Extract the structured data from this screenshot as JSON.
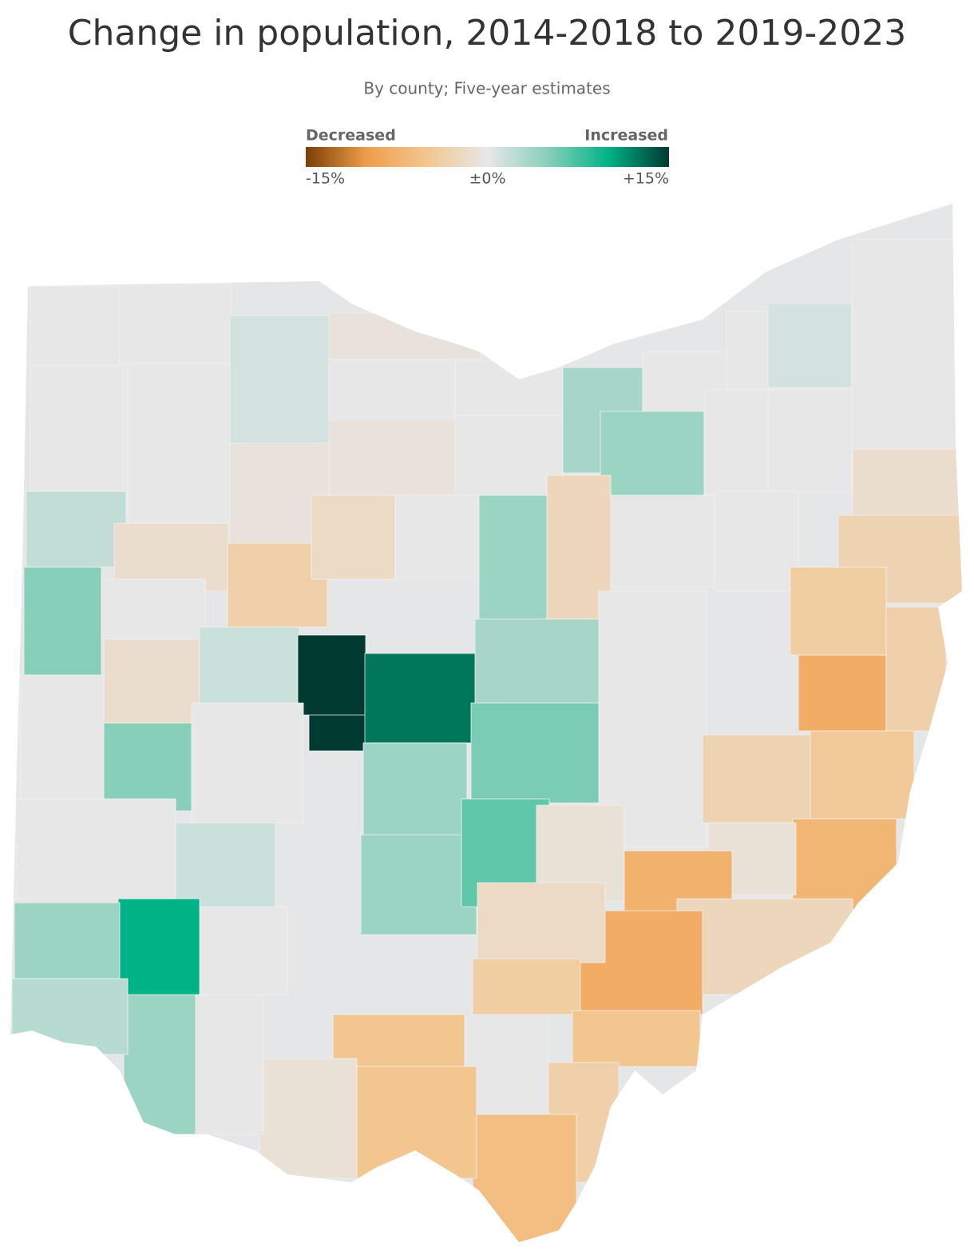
{
  "chart_data": {
    "type": "choropleth",
    "title": "Change in population, 2014-2018 to 2019-2023",
    "subtitle": "By county; Five-year estimates",
    "legend": {
      "low_label": "Decreased",
      "high_label": "Increased"
    },
    "colorlim": [
      -15,
      15
    ],
    "colorticks": [
      {
        "value": -15,
        "label": "-15%"
      },
      {
        "value": 0,
        "label": "±0%"
      },
      {
        "value": 15,
        "label": "+15%"
      }
    ],
    "colors": [
      "#7b3f05",
      "#ef9d4a",
      "#f3c690",
      "#e7e7e8",
      "#88cfba",
      "#00b386",
      "#003a30"
    ],
    "values": [
      0,
      0,
      1,
      -0.8,
      0,
      0,
      -0.8,
      0,
      0,
      -0.8,
      0,
      3.5,
      0,
      4,
      0,
      1,
      0,
      0,
      0,
      -1.5,
      -3,
      2,
      -1.5,
      -3.5,
      -2,
      0,
      4,
      -2.5,
      0,
      0,
      0,
      5,
      0,
      -1.5,
      0,
      1.5,
      15,
      12.5,
      3.5,
      5.5,
      5,
      0,
      1.5,
      4,
      4,
      6.5,
      -1,
      -3,
      -8,
      -3.5,
      -4,
      -4.5,
      -7,
      -1,
      -7.5,
      -2.5,
      -8,
      -2,
      -4,
      -5,
      -3.5,
      0,
      -6,
      -5,
      -5,
      -1,
      0,
      0,
      4,
      10,
      4,
      2.5,
      0
    ]
  }
}
